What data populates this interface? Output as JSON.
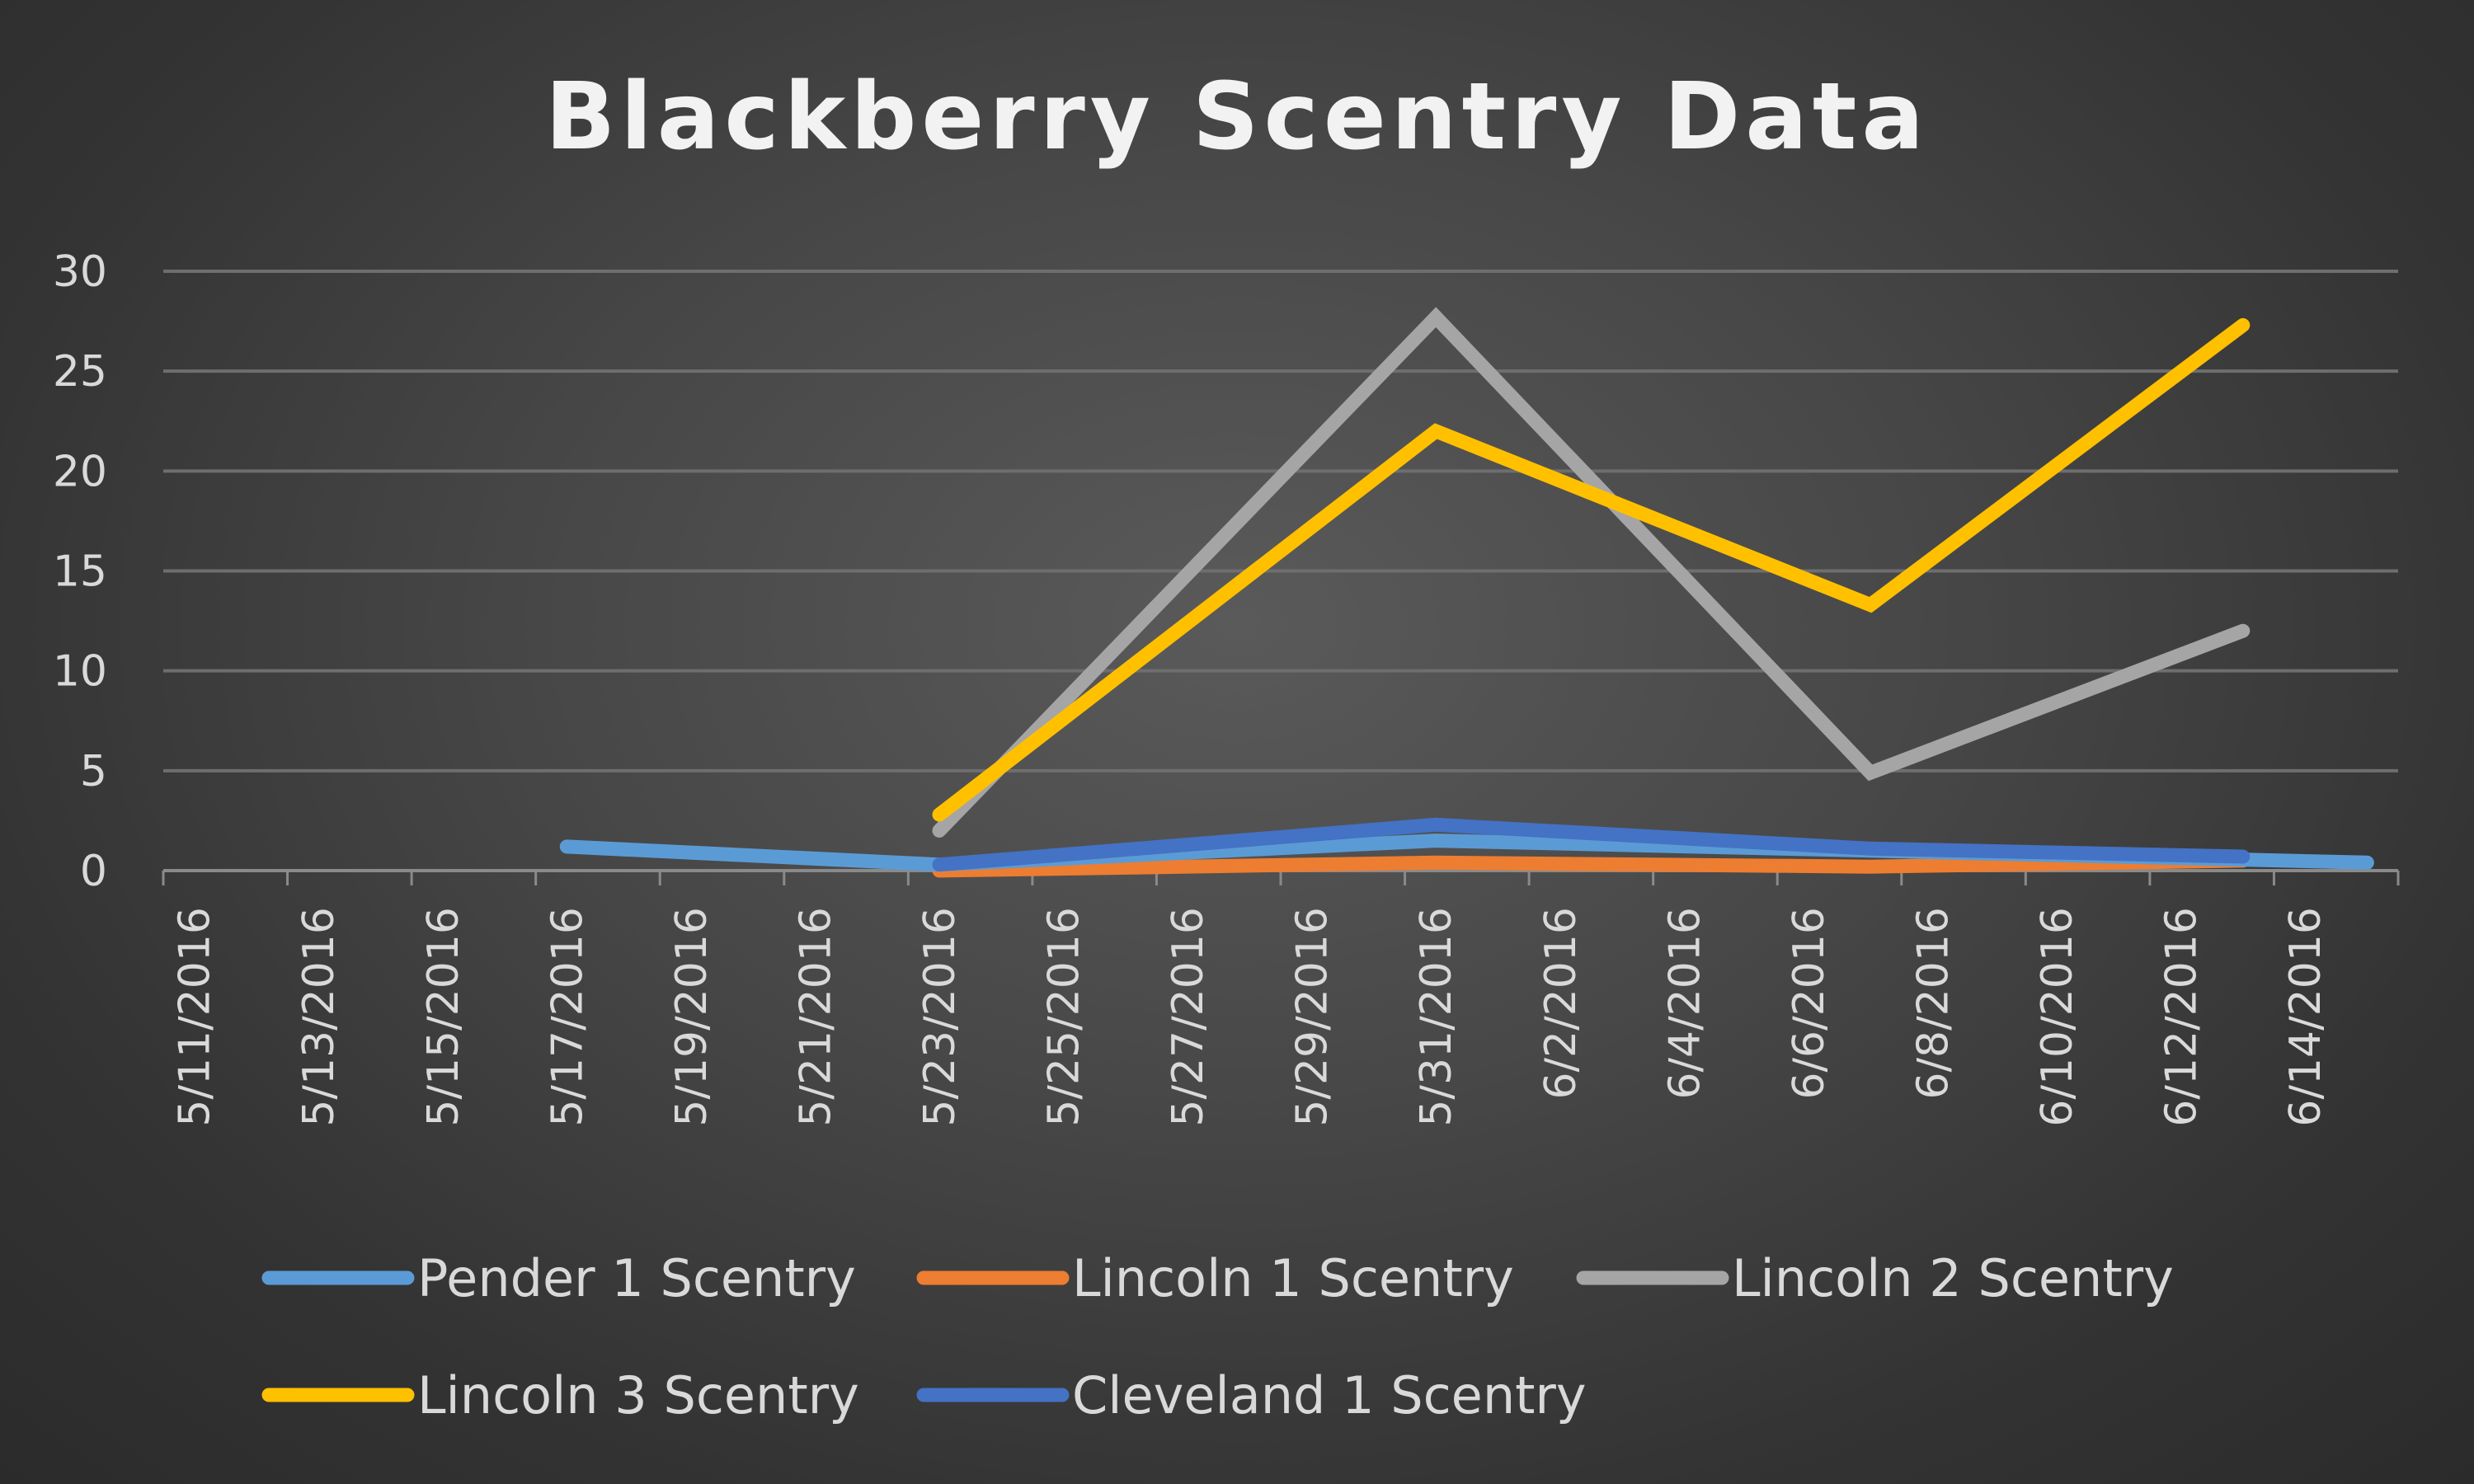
{
  "chart_data": {
    "type": "line",
    "title": "Blackberry Scentry Data",
    "xlabel": "",
    "ylabel": "",
    "ylim": [
      0,
      30
    ],
    "yticks": [
      0,
      5,
      10,
      15,
      20,
      25,
      30
    ],
    "xlim": [
      "5/11/2016",
      "6/15/2016"
    ],
    "xticks": [
      "5/11/2016",
      "5/13/2016",
      "5/15/2016",
      "5/17/2016",
      "5/19/2016",
      "5/21/2016",
      "5/23/2016",
      "5/25/2016",
      "5/27/2016",
      "5/29/2016",
      "5/31/2016",
      "6/2/2016",
      "6/4/2016",
      "6/6/2016",
      "6/8/2016",
      "6/10/2016",
      "6/12/2016",
      "6/14/2016"
    ],
    "grid": true,
    "legend_position": "bottom",
    "series": [
      {
        "name": "Pender 1 Scentry",
        "color": "#5b9bd5",
        "points": [
          [
            "5/17/2016",
            1.2
          ],
          [
            "5/23/2016",
            0.3
          ],
          [
            "5/31/2016",
            1.5
          ],
          [
            "6/7/2016",
            1.0
          ],
          [
            "6/15/2016",
            0.4
          ]
        ]
      },
      {
        "name": "Lincoln 1 Scentry",
        "color": "#ed7d31",
        "points": [
          [
            "5/23/2016",
            0
          ],
          [
            "5/31/2016",
            0.4
          ],
          [
            "6/7/2016",
            0.2
          ],
          [
            "6/13/2016",
            0.5
          ]
        ]
      },
      {
        "name": "Lincoln 2 Scentry",
        "color": "#a5a5a5",
        "points": [
          [
            "5/23/2016",
            2
          ],
          [
            "5/31/2016",
            27.7
          ],
          [
            "6/7/2016",
            4.9
          ],
          [
            "6/13/2016",
            12
          ]
        ]
      },
      {
        "name": "Lincoln 3 Scentry",
        "color": "#ffc000",
        "points": [
          [
            "5/23/2016",
            2.8
          ],
          [
            "5/31/2016",
            22
          ],
          [
            "6/7/2016",
            13.3
          ],
          [
            "6/13/2016",
            27.3
          ]
        ]
      },
      {
        "name": "Cleveland 1 Scentry",
        "color": "#4472c4",
        "points": [
          [
            "5/23/2016",
            0.3
          ],
          [
            "5/31/2016",
            2.3
          ],
          [
            "6/7/2016",
            1.1
          ],
          [
            "6/13/2016",
            0.7
          ]
        ]
      }
    ]
  }
}
